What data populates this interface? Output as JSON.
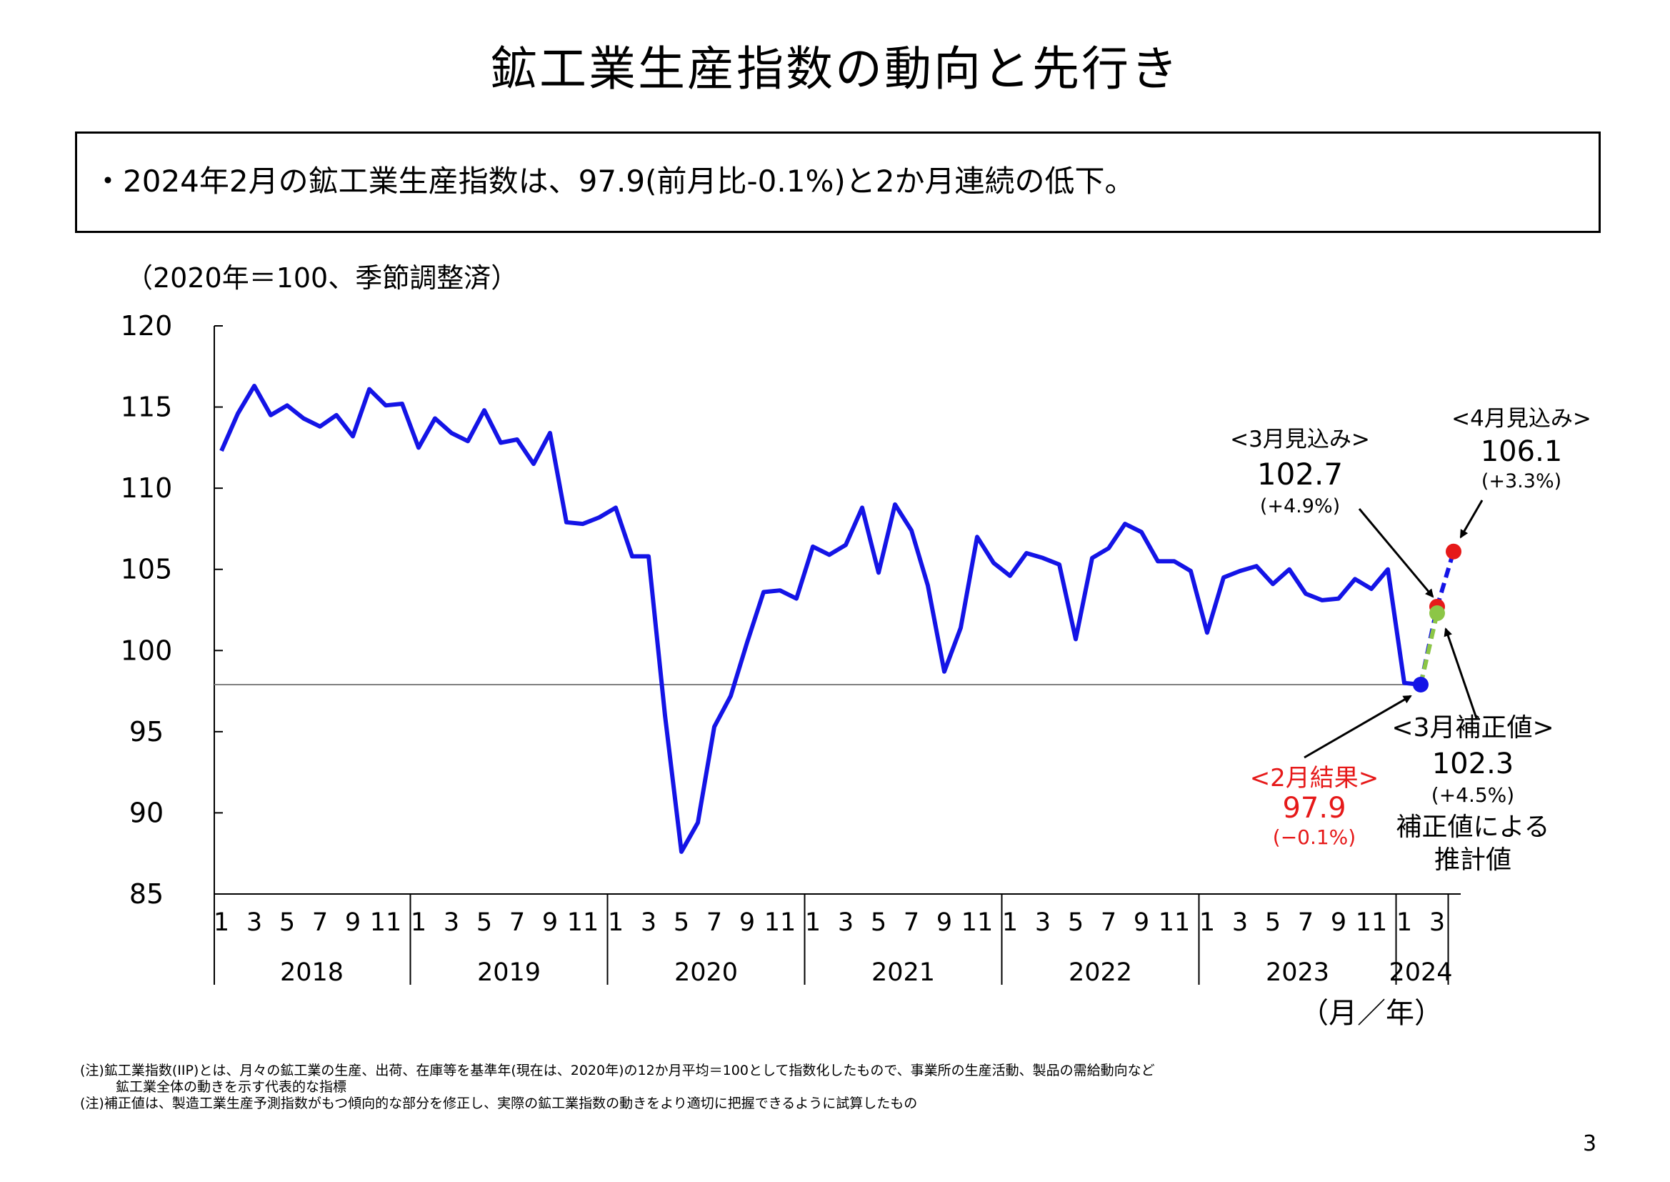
{
  "title": "鉱工業生産指数の動向と先行き",
  "summary": "・2024年2月の鉱工業生産指数は、97.9(前月比-0.1%)と2か月連続の低下。",
  "unit_label": "（2020年＝100、季節調整済）",
  "axis_unit": "（月／年）",
  "notes": [
    "(注)鉱工業指数(IIP)とは、月々の鉱工業の生産、出荷、在庫等を基準年(現在は、2020年)の12か月平均＝100として指数化したもので、事業所の生産活動、製品の需給動向など",
    "鉱工業全体の動きを示す代表的な指標",
    "(注)補正値は、製造工業生産予測指数がもつ傾向的な部分を修正し、実際の鉱工業指数の動きをより適切に把握できるように試算したもの"
  ],
  "page_number": "3",
  "colors": {
    "main_line": "#1414e6",
    "forecast_red": "#e61919",
    "adjusted_green": "#8cc646",
    "result_red": "#e61919",
    "reference_line": "#808080"
  },
  "chart_data": {
    "type": "line",
    "ylim": [
      85,
      120
    ],
    "yticks": [
      85,
      90,
      95,
      100,
      105,
      110,
      115,
      120
    ],
    "x_month_ticks": [
      "1",
      "3",
      "5",
      "7",
      "9",
      "11"
    ],
    "years": [
      "2018",
      "2019",
      "2020",
      "2021",
      "2022",
      "2023",
      "2024"
    ],
    "x_start": "2018-01",
    "x_end": "2024-03",
    "grid": false,
    "reference_line_value": 97.9,
    "series": [
      {
        "name": "",
        "values": [
          112.3,
          114.6,
          116.3,
          114.5,
          115.1,
          114.3,
          113.8,
          114.5,
          113.2,
          116.1,
          115.1,
          115.2,
          112.5,
          114.3,
          113.4,
          112.9,
          114.8,
          112.8,
          113.0,
          111.5,
          113.4,
          107.9,
          107.8,
          108.2,
          108.8,
          105.8,
          105.8,
          96.0,
          87.6,
          89.4,
          95.3,
          97.2,
          100.5,
          103.6,
          103.7,
          103.2,
          106.4,
          105.9,
          106.5,
          108.8,
          104.8,
          109.0,
          107.4,
          104.0,
          98.7,
          101.4,
          107.0,
          105.4,
          104.6,
          106.0,
          105.7,
          105.3,
          100.7,
          105.7,
          106.3,
          107.8,
          107.3,
          105.5,
          105.5,
          104.9,
          101.1,
          104.5,
          104.9,
          105.2,
          104.1,
          105.0,
          103.5,
          103.1,
          103.2,
          104.4,
          103.8,
          105.0,
          98.0,
          97.9
        ]
      }
    ],
    "forecasts": [
      {
        "label": "<3月見込み>",
        "value": 102.7,
        "value_text": "102.7",
        "change": "(+4.9%)",
        "month": "2024-03"
      },
      {
        "label": "<4月見込み>",
        "value": 106.1,
        "value_text": "106.1",
        "change": "(+3.3%)",
        "month": "2024-04"
      },
      {
        "label": "<3月補正値>",
        "value": 102.3,
        "value_text": "102.3",
        "change": "(+4.5%)",
        "month": "2024-03",
        "note_line1": "補正値による",
        "note_line2": "推計値"
      }
    ],
    "latest": {
      "label": "<2月結果>",
      "value": 97.9,
      "value_text": "97.9",
      "change": "(−0.1%)",
      "month": "2024-02"
    }
  }
}
